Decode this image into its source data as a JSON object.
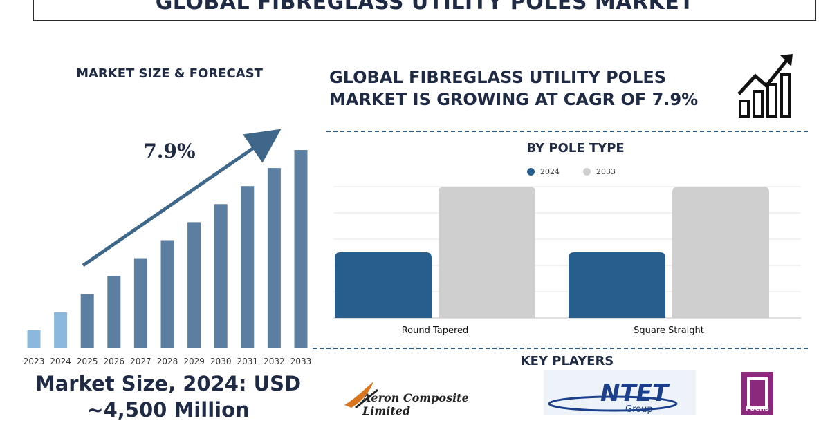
{
  "title": "GLOBAL FIBREGLASS UTILITY POLES MARKET",
  "left_subtitle": "MARKET SIZE & FORECAST",
  "right_headline": "GLOBAL FIBREGLASS UTILITY POLES MARKET IS GROWING AT CAGR OF 7.9%",
  "market_size_text": "Market Size, 2024: USD ~4,500 Million",
  "key_players_title": "KEY PLAYERS",
  "logos": {
    "aeron": "Aeron Composite Limited",
    "ntet": "NTET",
    "ntet_sub": "Group",
    "fuchs": "FUCHS"
  },
  "icons": [
    "growth-chart-icon",
    "trend-arrow-icon"
  ],
  "colors": {
    "navy": "#1f2a44",
    "bar_dark": "#5b7ea1",
    "bar_light": "#8db8de",
    "series_2024": "#265e8e",
    "series_2033": "#cfcfcf",
    "arrow": "#3e6789"
  },
  "chart_data": [
    {
      "type": "bar",
      "title": "MARKET SIZE & FORECAST",
      "categories": [
        "2023",
        "2024",
        "2025",
        "2026",
        "2027",
        "2028",
        "2029",
        "2030",
        "2031",
        "2032",
        "2033"
      ],
      "values": [
        1.0,
        2.0,
        3.0,
        4.0,
        5.0,
        6.0,
        7.0,
        8.0,
        9.0,
        10.0,
        11.0
      ],
      "annotation": "7.9%",
      "ylim": [
        0,
        11.5
      ],
      "grid": false,
      "note_highlight": [
        "2023",
        "2024"
      ]
    },
    {
      "type": "bar",
      "title": "BY POLE TYPE",
      "categories": [
        "Round Tapered",
        "Square Straight"
      ],
      "series": [
        {
          "name": "2024",
          "values": [
            50,
            50
          ]
        },
        {
          "name": "2033",
          "values": [
            100,
            100
          ]
        }
      ],
      "ylim": [
        0,
        100
      ],
      "grid": true,
      "legend": "top-center"
    }
  ]
}
